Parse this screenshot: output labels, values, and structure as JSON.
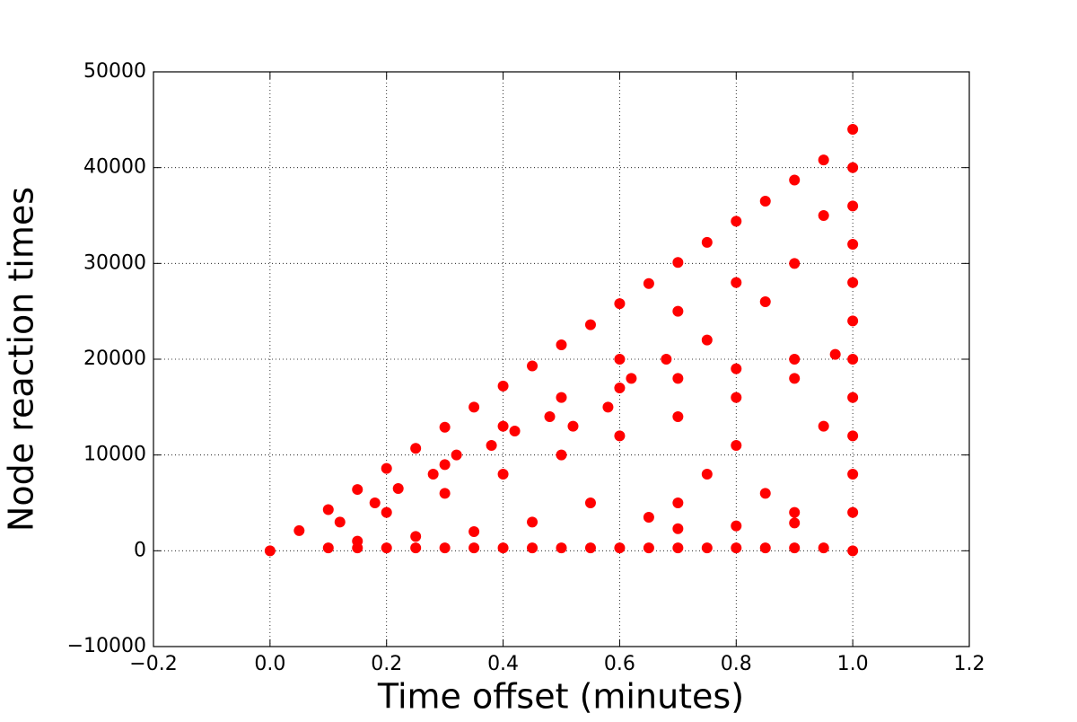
{
  "chart_data": {
    "type": "scatter",
    "xlabel": "Time offset (minutes)",
    "ylabel": "Node reaction times",
    "color": "#ff0000",
    "grid": true,
    "xlim": [
      -0.2,
      1.2
    ],
    "xticks": [
      {
        "value": -0.2,
        "label": "−0.2"
      },
      {
        "value": 0,
        "label": "0.0"
      },
      0.2,
      0.4,
      0.6,
      0.8,
      {
        "value": 1,
        "label": "1.0"
      },
      1.2
    ],
    "ylim": [
      -10000,
      50000
    ],
    "yticks": [
      {
        "value": -10000,
        "label": "−10000"
      },
      0,
      10000,
      20000,
      30000,
      40000,
      50000
    ],
    "x": [
      0.05,
      0.1,
      0.15,
      0.2,
      0.25,
      0.3,
      0.35,
      0.4,
      0.45,
      0.5,
      0.55,
      0.6,
      0.65,
      0.7,
      0.75,
      0.8,
      0.85,
      0.9,
      0.95,
      1,
      1,
      1,
      1,
      1,
      1,
      1,
      1,
      1,
      1,
      1,
      1,
      0.1,
      0.15,
      0.2,
      0.25,
      0.3,
      0.35,
      0.4,
      0.45,
      0.5,
      0.55,
      0.6,
      0.65,
      0.7,
      0.75,
      0.8,
      0.85,
      0.9,
      0.95,
      0.2,
      0.3,
      0.4,
      0.5,
      0.6,
      0.7,
      0.8,
      0.9,
      0.3,
      0.4,
      0.5,
      0.6,
      0.7,
      0.8,
      0.9,
      0.95,
      0.85,
      0.75,
      0.6,
      0.7,
      0.8,
      0.9,
      0.97,
      0.7,
      0.8,
      0.9,
      0.75,
      0.85,
      0.9,
      0.8,
      0.95,
      0.7,
      0.65,
      0.55,
      0.45,
      0.35,
      0.25,
      0.15,
      0,
      0.12,
      0.18,
      0.22,
      0.28,
      0.32,
      0.38,
      0.42,
      0.48,
      0.52,
      0.58,
      0.62,
      0.68
    ],
    "y": [
      2100,
      4300,
      6400,
      8600,
      10700,
      12900,
      15000,
      17200,
      19300,
      21500,
      23600,
      25800,
      27900,
      30100,
      32200,
      34400,
      36500,
      38700,
      40800,
      0,
      4000,
      8000,
      12000,
      16000,
      20000,
      24000,
      28000,
      32000,
      36000,
      40000,
      44000,
      300,
      300,
      300,
      300,
      300,
      300,
      300,
      300,
      300,
      300,
      300,
      300,
      300,
      300,
      300,
      300,
      300,
      300,
      4000,
      6000,
      8000,
      10000,
      12000,
      14000,
      16000,
      18000,
      9000,
      13000,
      16000,
      20000,
      25000,
      28000,
      30000,
      35000,
      26000,
      22000,
      17000,
      18000,
      19000,
      20000,
      20500,
      2300,
      2600,
      2900,
      8000,
      6000,
      4000,
      11000,
      13000,
      5000,
      3500,
      5000,
      3000,
      2000,
      1500,
      1000,
      0,
      3000,
      5000,
      6500,
      8000,
      10000,
      11000,
      12500,
      14000,
      13000,
      15000,
      18000,
      20000
    ]
  }
}
